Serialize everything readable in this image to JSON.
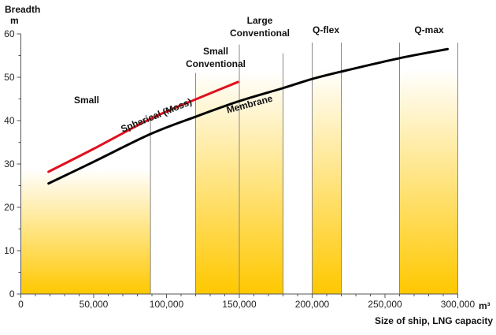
{
  "chart_data": {
    "type": "line",
    "title": "",
    "ylabel": "Breadth",
    "ylabel_unit": "m",
    "xlabel": "Size of ship, LNG capacity",
    "xlabel_unit": "m³",
    "xlim": [
      0,
      300000
    ],
    "ylim": [
      0,
      60
    ],
    "x_ticks": [
      "0",
      "50,000",
      "100,000",
      "150,000",
      "200,000",
      "250,000",
      "300,000"
    ],
    "y_ticks": [
      "0",
      "10",
      "20",
      "30",
      "40",
      "50",
      "60"
    ],
    "grid": false,
    "series": [
      {
        "name": "Spherical (Moss)",
        "color": "#e0101e",
        "points": [
          [
            19000,
            28.2
          ],
          [
            50000,
            33.5
          ],
          [
            89000,
            40.4
          ],
          [
            120000,
            44.9
          ],
          [
            149000,
            48.9
          ]
        ]
      },
      {
        "name": "Membrane",
        "color": "#000000",
        "points": [
          [
            19000,
            25.5
          ],
          [
            50000,
            30.5
          ],
          [
            89000,
            36.9
          ],
          [
            120000,
            40.9
          ],
          [
            150000,
            44.5
          ],
          [
            180000,
            47.5
          ],
          [
            200000,
            49.6
          ],
          [
            220000,
            51.3
          ],
          [
            260000,
            54.4
          ],
          [
            293000,
            56.5
          ]
        ]
      }
    ],
    "bands": [
      {
        "name": "Small",
        "range": [
          0,
          89000
        ]
      },
      {
        "name": "Small Conventional",
        "name_lines": [
          "Small",
          "Conventional"
        ],
        "range": [
          120000,
          150000
        ]
      },
      {
        "name": "Large Conventional",
        "name_lines": [
          "Large",
          "Conventional"
        ],
        "range": [
          150000,
          180000
        ]
      },
      {
        "name": "Q-flex",
        "range": [
          200000,
          220000
        ]
      },
      {
        "name": "Q-max",
        "range": [
          260000,
          300000
        ]
      }
    ],
    "band_color": "#ffc800"
  }
}
